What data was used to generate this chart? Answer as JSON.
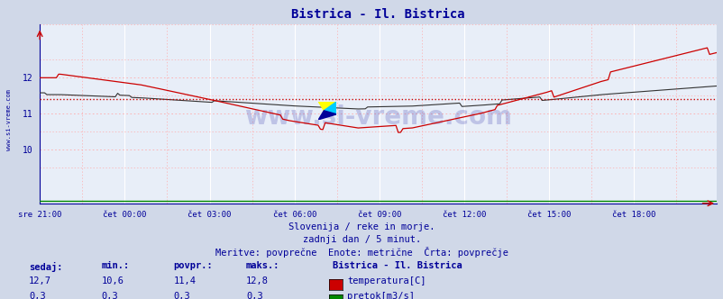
{
  "title": "Bistrica - Il. Bistrica",
  "title_color": "#000099",
  "bg_color": "#d0d8e8",
  "plot_bg_color": "#e8eef8",
  "x_tick_labels": [
    "sre 21:00",
    "čet 00:00",
    "čet 03:00",
    "čet 06:00",
    "čet 09:00",
    "čet 12:00",
    "čet 15:00",
    "čet 18:00"
  ],
  "x_tick_positions": [
    0,
    36,
    72,
    108,
    144,
    180,
    216,
    252
  ],
  "n_points": 288,
  "ylim": [
    8.5,
    13.5
  ],
  "y_ticks": [
    10,
    11,
    12
  ],
  "temp_color": "#cc0000",
  "temp2_color": "#333333",
  "flow_color": "#008800",
  "avg_line_color": "#cc0000",
  "avg_temp": 11.4,
  "watermark": "www.si-vreme.com",
  "watermark_color": "#000099",
  "watermark_alpha": 0.18,
  "footer_line1": "Slovenija / reke in morje.",
  "footer_line2": "zadnji dan / 5 minut.",
  "footer_line3": "Meritve: povprečne  Enote: metrične  Črta: povprečje",
  "footer_color": "#000099",
  "left_label": "www.si-vreme.com",
  "left_label_color": "#000099",
  "legend_title": "Bistrica - Il. Bistrica",
  "legend_title_color": "#000099",
  "legend_rows": [
    {
      "sedaj": "12,7",
      "min": "10,6",
      "povpr": "11,4",
      "maks": "12,8",
      "color": "#cc0000",
      "label": "temperatura[C]"
    },
    {
      "sedaj": "0,3",
      "min": "0,3",
      "povpr": "0,3",
      "maks": "0,3",
      "color": "#008800",
      "label": "pretok[m3/s]"
    }
  ],
  "table_headers": [
    "sedaj:",
    "min.:",
    "povpr.:",
    "maks.:"
  ],
  "table_color": "#000099",
  "spine_color": "#000099",
  "major_vgrid_color": "#ffffff",
  "minor_vgrid_color": "#ffaaaa",
  "major_hgrid_color": "#ffaaaa",
  "minor_hgrid_color": "#ffcccc"
}
